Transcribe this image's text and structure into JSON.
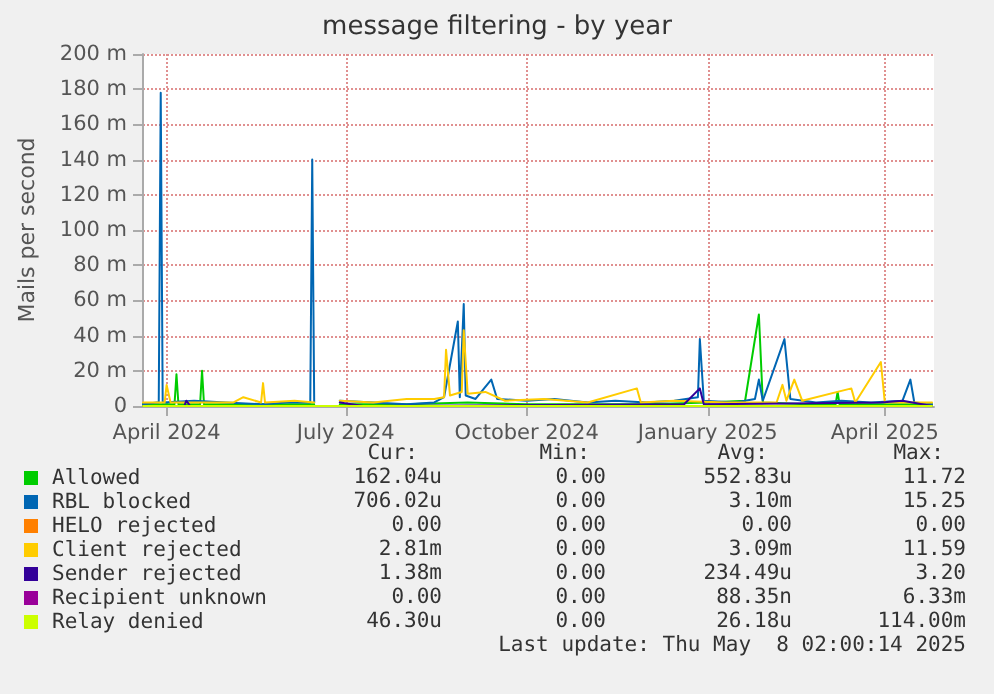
{
  "chart_data": {
    "type": "line",
    "title": "message filtering - by year",
    "ylabel": "Mails per second",
    "xlim": [
      "2024-03-20",
      "2025-04-26"
    ],
    "xticks": [
      {
        "value": "2024-04-01",
        "label": "April 2024"
      },
      {
        "value": "2024-07-01",
        "label": "July 2024"
      },
      {
        "value": "2024-10-01",
        "label": "October 2024"
      },
      {
        "value": "2025-01-01",
        "label": "January 2025"
      },
      {
        "value": "2025-04-01",
        "label": "April 2025"
      }
    ],
    "ylim": [
      0,
      200
    ],
    "yticks": [
      0,
      {
        "value": 20,
        "label": "20 m"
      },
      {
        "value": 40,
        "label": "40 m"
      },
      {
        "value": 60,
        "label": "60 m"
      },
      {
        "value": 80,
        "label": "80 m"
      },
      {
        "value": 100,
        "label": "100 m"
      },
      {
        "value": 120,
        "label": "120 m"
      },
      {
        "value": 140,
        "label": "140 m"
      },
      {
        "value": 160,
        "label": "160 m"
      },
      {
        "value": 180,
        "label": "180 m"
      },
      {
        "value": 200,
        "label": "200 m"
      }
    ],
    "grid": true,
    "legend": "bottom",
    "marker": "none",
    "line_style": "solid",
    "series": [
      {
        "name": "Allowed",
        "color": "#00cc00",
        "x": [
          "2024-03-20",
          "2024-04-05",
          "2024-04-06",
          "2024-04-07",
          "2024-04-18",
          "2024-04-19",
          "2024-04-20",
          "2024-05-15",
          "2024-06-15",
          "2024-06-20",
          "2024-06-28",
          "2024-08-01",
          "2024-09-01",
          "2024-10-01",
          "2024-11-01",
          "2024-12-01",
          "2025-01-01",
          "2025-01-20",
          "2025-01-27",
          "2025-01-29",
          "2025-02-20",
          "2025-03-07",
          "2025-03-08",
          "2025-03-09",
          "2025-04-25"
        ],
        "values": [
          1,
          1,
          18,
          1,
          1,
          20,
          1,
          1,
          1,
          null,
          1,
          1,
          2,
          1,
          1,
          1,
          2,
          3,
          52,
          2,
          1,
          1,
          8,
          1,
          1
        ]
      },
      {
        "name": "RBL blocked",
        "color": "#0066b3",
        "x": [
          "2024-03-20",
          "2024-03-27",
          "2024-03-28",
          "2024-03-29",
          "2024-03-30",
          "2024-04-15",
          "2024-05-01",
          "2024-05-20",
          "2024-06-01",
          "2024-06-13",
          "2024-06-14",
          "2024-06-15",
          "2024-06-20",
          "2024-06-28",
          "2024-07-15",
          "2024-08-01",
          "2024-08-15",
          "2024-08-20",
          "2024-08-27",
          "2024-08-28",
          "2024-08-30",
          "2024-08-31",
          "2024-09-05",
          "2024-09-13",
          "2024-09-16",
          "2024-10-01",
          "2024-10-15",
          "2024-11-01",
          "2024-11-15",
          "2024-12-01",
          "2024-12-15",
          "2024-12-27",
          "2024-12-28",
          "2024-12-30",
          "2025-01-15",
          "2025-01-25",
          "2025-01-27",
          "2025-01-29",
          "2025-02-09",
          "2025-02-12",
          "2025-02-25",
          "2025-03-10",
          "2025-03-25",
          "2025-04-10",
          "2025-04-14",
          "2025-04-16",
          "2025-04-25"
        ],
        "values": [
          1,
          2,
          2,
          178,
          2,
          3,
          2,
          1,
          2,
          2,
          140,
          2,
          null,
          3,
          2,
          1,
          2,
          5,
          48,
          5,
          58,
          6,
          4,
          15,
          4,
          3,
          4,
          2,
          3,
          2,
          3,
          5,
          38,
          3,
          2,
          4,
          15,
          3,
          38,
          4,
          2,
          3,
          2,
          3,
          15,
          2,
          1
        ]
      },
      {
        "name": "HELO rejected",
        "color": "#ff8000"
      },
      {
        "name": "Client rejected",
        "color": "#ffcc00",
        "x": [
          "2024-03-20",
          "2024-03-31",
          "2024-04-01",
          "2024-04-03",
          "2024-05-05",
          "2024-05-10",
          "2024-05-19",
          "2024-05-20",
          "2024-05-21",
          "2024-06-05",
          "2024-06-15",
          "2024-06-20",
          "2024-06-28",
          "2024-07-15",
          "2024-08-01",
          "2024-08-15",
          "2024-08-20",
          "2024-08-21",
          "2024-08-23",
          "2024-08-29",
          "2024-08-30",
          "2024-09-01",
          "2024-09-10",
          "2024-09-20",
          "2024-10-10",
          "2024-11-01",
          "2024-11-26",
          "2024-11-28",
          "2024-12-15",
          "2025-01-10",
          "2025-02-05",
          "2025-02-08",
          "2025-02-10",
          "2025-02-14",
          "2025-02-18",
          "2025-03-15",
          "2025-03-17",
          "2025-03-30",
          "2025-04-01",
          "2025-04-25"
        ],
        "values": [
          2,
          2,
          12,
          2,
          2,
          5,
          2,
          13,
          2,
          3,
          2,
          null,
          3,
          2,
          4,
          4,
          5,
          32,
          6,
          8,
          43,
          7,
          8,
          3,
          4,
          2,
          10,
          2,
          3,
          2,
          2,
          12,
          3,
          15,
          3,
          10,
          2,
          25,
          2,
          2
        ]
      },
      {
        "name": "Sender rejected",
        "color": "#330099",
        "x": [
          "2024-03-20",
          "2024-04-10",
          "2024-04-11",
          "2024-04-13",
          "2024-06-15",
          "2024-06-20",
          "2024-06-28",
          "2024-07-10",
          "2024-12-20",
          "2024-12-28",
          "2024-12-30",
          "2025-03-30",
          "2025-04-10",
          "2025-04-25"
        ],
        "values": [
          0,
          0,
          3,
          0,
          0,
          null,
          2,
          0,
          1,
          10,
          1,
          2,
          3,
          0
        ]
      },
      {
        "name": "Recipient unknown",
        "color": "#990099"
      },
      {
        "name": "Relay denied",
        "color": "#ccff00",
        "x": [
          "2024-03-20",
          "2025-04-25"
        ],
        "values": [
          0,
          0
        ]
      }
    ],
    "annotations": [
      "Cur:",
      "Min:",
      "Avg:",
      "Max:",
      "162.04u",
      "0.00",
      "552.83u",
      "11.72",
      "706.02u",
      "0.00",
      "3.10m",
      "15.25",
      "0.00",
      "0.00",
      "0.00",
      "0.00",
      "2.81m",
      "0.00",
      "3.09m",
      "11.59",
      "1.38m",
      "0.00",
      "234.49u",
      "3.20",
      "0.00",
      "0.00",
      "88.35n",
      "6.33m",
      "46.30u",
      "0.00",
      "26.18u",
      "114.00m",
      "Last update: Thu May  8 02:00:14 2025"
    ]
  }
}
